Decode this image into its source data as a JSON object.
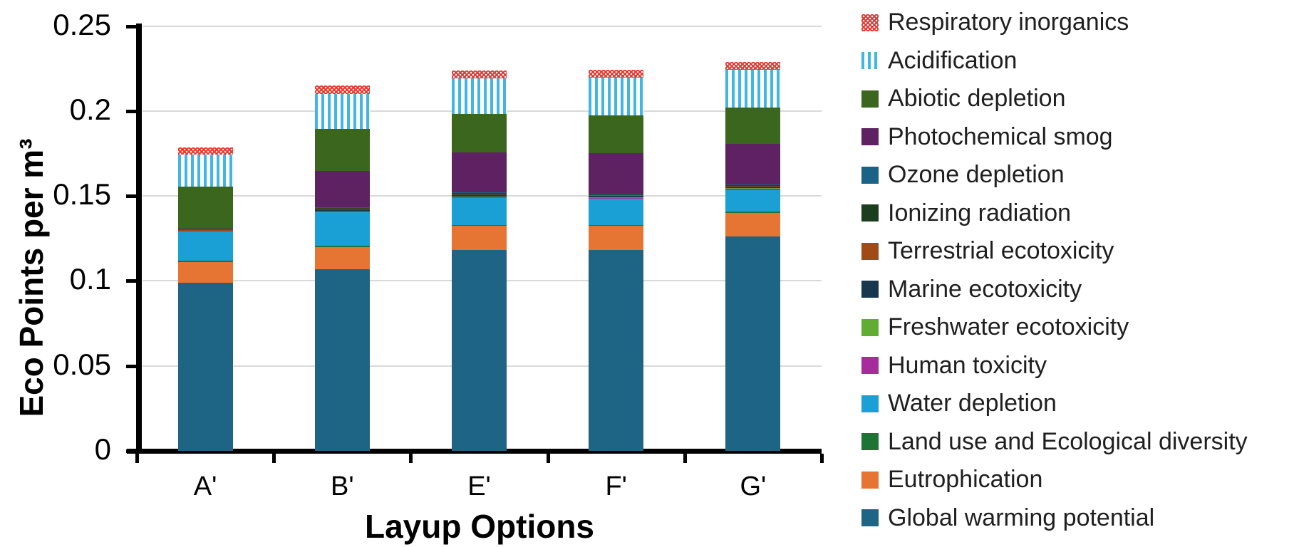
{
  "chart_data": {
    "type": "bar",
    "subtype": "stacked-vertical",
    "xlabel": "Layup Options",
    "ylabel": "Eco Points per m³",
    "categories": [
      "A'",
      "B'",
      "E'",
      "F'",
      "G'"
    ],
    "y_axis": {
      "min": 0,
      "max": 0.25,
      "tick_step": 0.05,
      "tick_labels": [
        "0",
        "0.05",
        "0.1",
        "0.15",
        "0.2",
        "0.25"
      ]
    },
    "grid": true,
    "gridline_color": "#d9d9d9",
    "axis_color": "#000000",
    "legend_position": "right",
    "stack_order_note": "series listed bottom-to-top; legend shows reverse (top-to-bottom)",
    "series": [
      {
        "name": "Global warming potential",
        "color": "#1e6484",
        "pattern": "solid",
        "values": [
          0.099,
          0.107,
          0.118,
          0.118,
          0.126
        ]
      },
      {
        "name": "Eutrophication",
        "color": "#e67432",
        "pattern": "solid",
        "values": [
          0.0122,
          0.0129,
          0.0143,
          0.0143,
          0.0139
        ]
      },
      {
        "name": "Land use and Ecological diversity",
        "color": "#1e7434",
        "pattern": "solid",
        "values": [
          0.0008,
          0.0007,
          0.0006,
          0.0007,
          0.0009
        ]
      },
      {
        "name": "Water depletion",
        "color": "#1ba0d6",
        "pattern": "solid",
        "values": [
          0.0175,
          0.0198,
          0.016,
          0.0153,
          0.0128
        ]
      },
      {
        "name": "Human toxicity",
        "color": "#a62c9e",
        "pattern": "solid",
        "values": [
          0.0002,
          0.0003,
          0.0005,
          0.0005,
          0.0006
        ]
      },
      {
        "name": "Freshwater ecotoxicity",
        "color": "#61ad34",
        "pattern": "solid",
        "values": [
          0.0001,
          0.0003,
          0.0004,
          0.0004,
          0.0004
        ]
      },
      {
        "name": "Marine ecotoxicity",
        "color": "#17374e",
        "pattern": "solid",
        "values": [
          0.0002,
          0.0009,
          0.0009,
          0.0009,
          0.0009
        ]
      },
      {
        "name": "Terrestrial ecotoxicity",
        "color": "#a04a16",
        "pattern": "solid",
        "values": [
          0.0001,
          0.0004,
          0.0004,
          0.0004,
          0.0004
        ]
      },
      {
        "name": "Ionizing radiation",
        "color": "#1b3f1e",
        "pattern": "solid",
        "values": [
          0.0001,
          0.0006,
          0.0006,
          0.0006,
          0.0006
        ]
      },
      {
        "name": "Ozone depletion",
        "color": "#1a6386",
        "pattern": "solid",
        "values": [
          0.0001,
          0.0004,
          0.0003,
          0.0004,
          0.0002
        ]
      },
      {
        "name": "Photochemical smog",
        "color": "#5e2161",
        "pattern": "solid",
        "values": [
          0.0005,
          0.0214,
          0.0235,
          0.0238,
          0.0241
        ]
      },
      {
        "name": "Abiotic depletion",
        "color": "#3a671d",
        "pattern": "solid",
        "values": [
          0.0247,
          0.0247,
          0.0226,
          0.0223,
          0.0214
        ]
      },
      {
        "name": "Acidification",
        "color": "#41b6e6",
        "pattern": "vstripes",
        "values": [
          0.0187,
          0.0207,
          0.0212,
          0.022,
          0.0219
        ]
      },
      {
        "name": "Respiratory inorganics",
        "color": "#e8332a",
        "pattern": "dots",
        "values": [
          0.0043,
          0.0047,
          0.0046,
          0.0046,
          0.0047
        ]
      }
    ]
  }
}
